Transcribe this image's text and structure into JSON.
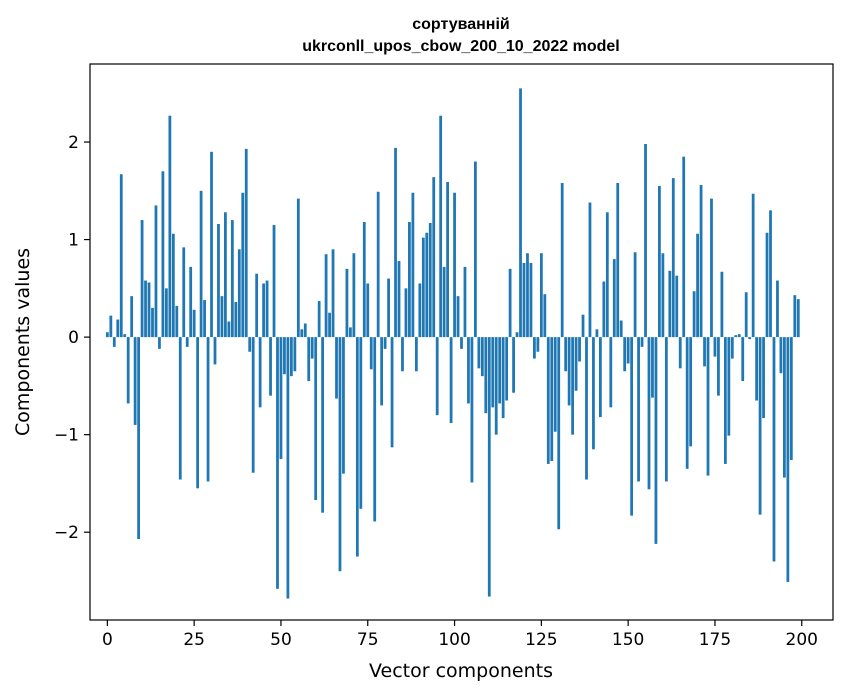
{
  "chart_data": {
    "type": "bar",
    "title": "сортуванній",
    "subtitle": "ukrconll_upos_cbow_200_10_2022 model",
    "xlabel": "Vector components",
    "ylabel": "Components values",
    "xlim": [
      -5,
      209
    ],
    "ylim": [
      -2.9,
      2.8
    ],
    "xticks": [
      0,
      25,
      50,
      75,
      100,
      125,
      150,
      175,
      200
    ],
    "yticks": [
      -2,
      -1,
      0,
      1,
      2
    ],
    "xtick_labels": [
      "0",
      "25",
      "50",
      "75",
      "100",
      "125",
      "150",
      "175",
      "200"
    ],
    "ytick_labels": [
      "−2",
      "−1",
      "0",
      "1",
      "2"
    ],
    "bar_color": "#1f77b4",
    "grid": false,
    "legend": "none",
    "x": [
      0,
      1,
      2,
      3,
      4,
      5,
      6,
      7,
      8,
      9,
      10,
      11,
      12,
      13,
      14,
      15,
      16,
      17,
      18,
      19,
      20,
      21,
      22,
      23,
      24,
      25,
      26,
      27,
      28,
      29,
      30,
      31,
      32,
      33,
      34,
      35,
      36,
      37,
      38,
      39,
      40,
      41,
      42,
      43,
      44,
      45,
      46,
      47,
      48,
      49,
      50,
      51,
      52,
      53,
      54,
      55,
      56,
      57,
      58,
      59,
      60,
      61,
      62,
      63,
      64,
      65,
      66,
      67,
      68,
      69,
      70,
      71,
      72,
      73,
      74,
      75,
      76,
      77,
      78,
      79,
      80,
      81,
      82,
      83,
      84,
      85,
      86,
      87,
      88,
      89,
      90,
      91,
      92,
      93,
      94,
      95,
      96,
      97,
      98,
      99,
      100,
      101,
      102,
      103,
      104,
      105,
      106,
      107,
      108,
      109,
      110,
      111,
      112,
      113,
      114,
      115,
      116,
      117,
      118,
      119,
      120,
      121,
      122,
      123,
      124,
      125,
      126,
      127,
      128,
      129,
      130,
      131,
      132,
      133,
      134,
      135,
      136,
      137,
      138,
      139,
      140,
      141,
      142,
      143,
      144,
      145,
      146,
      147,
      148,
      149,
      150,
      151,
      152,
      153,
      154,
      155,
      156,
      157,
      158,
      159,
      160,
      161,
      162,
      163,
      164,
      165,
      166,
      167,
      168,
      169,
      170,
      171,
      172,
      173,
      174,
      175,
      176,
      177,
      178,
      179,
      180,
      181,
      182,
      183,
      184,
      185,
      186,
      187,
      188,
      189,
      190,
      191,
      192,
      193,
      194,
      195,
      196,
      197,
      198,
      199
    ],
    "values": [
      0.05,
      0.22,
      -0.1,
      0.18,
      1.67,
      0.03,
      -0.68,
      0.42,
      -0.9,
      -2.07,
      1.2,
      0.58,
      0.56,
      0.3,
      1.35,
      -0.12,
      1.7,
      0.5,
      2.27,
      1.06,
      0.32,
      -1.46,
      0.92,
      -0.1,
      0.72,
      0.28,
      -1.55,
      1.5,
      0.38,
      -1.48,
      1.9,
      -0.28,
      1.16,
      0.42,
      1.28,
      0.16,
      1.2,
      0.36,
      0.9,
      1.48,
      1.93,
      -0.15,
      -1.39,
      0.65,
      -0.72,
      0.55,
      0.58,
      -0.6,
      1.15,
      -2.58,
      -1.25,
      -0.38,
      -2.68,
      -0.4,
      -0.35,
      1.42,
      0.08,
      0.14,
      -0.45,
      -0.22,
      -1.67,
      0.37,
      -1.8,
      0.85,
      0.25,
      0.9,
      -0.63,
      -2.4,
      -1.4,
      0.7,
      0.1,
      0.86,
      -2.25,
      -1.76,
      1.18,
      0.55,
      -0.33,
      -1.89,
      1.49,
      -0.7,
      -0.12,
      0.6,
      -1.13,
      1.94,
      0.78,
      -0.35,
      0.5,
      1.18,
      1.48,
      -0.35,
      0.55,
      1.02,
      1.07,
      1.17,
      1.64,
      -0.8,
      2.27,
      0.72,
      1.59,
      -0.88,
      1.48,
      0.42,
      -0.12,
      0.72,
      -0.68,
      -1.49,
      1.8,
      -0.32,
      -0.4,
      -0.78,
      -2.66,
      -0.72,
      -1.0,
      -0.68,
      -0.83,
      -0.65,
      0.7,
      -0.57,
      0.05,
      2.55,
      0.76,
      0.86,
      0.76,
      -0.22,
      -0.15,
      0.86,
      0.44,
      -1.3,
      -1.27,
      -0.97,
      -1.97,
      1.58,
      -0.35,
      -0.7,
      -1.0,
      -0.55,
      -0.25,
      0.23,
      -1.46,
      1.38,
      -1.15,
      0.08,
      -0.82,
      0.57,
      1.28,
      -0.72,
      0.8,
      1.58,
      0.17,
      -0.35,
      -0.27,
      -1.83,
      0.87,
      -1.48,
      -0.1,
      1.98,
      -1.56,
      -0.62,
      -2.12,
      1.55,
      0.86,
      -1.48,
      0.68,
      1.63,
      0.63,
      -0.32,
      1.85,
      -1.35,
      -1.12,
      0.47,
      1.06,
      1.56,
      -0.3,
      -1.42,
      1.42,
      -0.2,
      -0.6,
      0.67,
      -1.3,
      -1.01,
      -0.22,
      0.02,
      0.03,
      -0.45,
      0.46,
      -0.02,
      1.47,
      -0.65,
      -1.82,
      -0.83,
      1.07,
      1.3,
      -2.3,
      0.58,
      -0.37,
      -1.44,
      -2.51,
      -1.26,
      0.43,
      0.39
    ]
  }
}
